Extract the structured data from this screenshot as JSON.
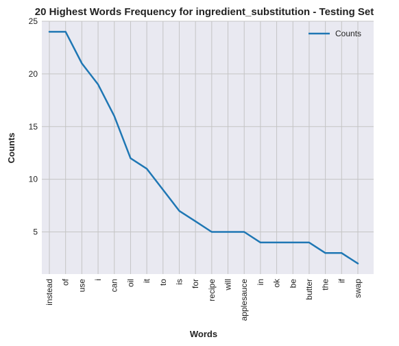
{
  "chart_data": {
    "type": "line",
    "title": "20 Highest Words Frequency for ingredient_substitution - Testing Set",
    "xlabel": "Words",
    "ylabel": "Counts",
    "categories": [
      "instead",
      "of",
      "use",
      "i",
      "can",
      "oil",
      "it",
      "to",
      "is",
      "for",
      "recipe",
      "will",
      "applesauce",
      "in",
      "ok",
      "be",
      "butter",
      "the",
      "if",
      "swap"
    ],
    "series": [
      {
        "name": "Counts",
        "values": [
          24,
          24,
          21,
          19,
          16,
          12,
          11,
          9,
          7,
          6,
          5,
          5,
          5,
          4,
          4,
          4,
          4,
          3,
          3,
          2
        ],
        "color": "#1f77b4"
      }
    ],
    "ylim": [
      1,
      25
    ],
    "yticks": [
      5,
      10,
      15,
      20,
      25
    ],
    "grid": true,
    "legend": "top-right",
    "background": "#e9e9f1",
    "grid_color": "#c4c4c4"
  }
}
